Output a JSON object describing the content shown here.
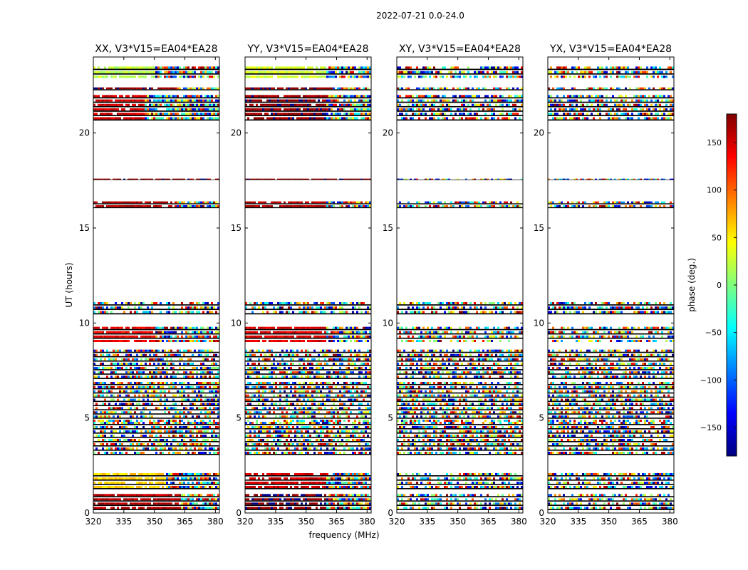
{
  "figure": {
    "suptitle": "2022-07-21 0.0-24.0",
    "xlabel": "frequency (MHz)",
    "ylabel": "UT (hours)"
  },
  "colorbar": {
    "label": "phase (deg.)",
    "range": [
      -180,
      180
    ],
    "ticks": [
      150,
      100,
      50,
      0,
      -50,
      -100,
      -150
    ],
    "tick_labels": [
      "150",
      "100",
      "50",
      "0",
      "−50",
      "−100",
      "−150"
    ],
    "colormap": "jet",
    "colors": [
      "#00007f",
      "#0000ff",
      "#007fff",
      "#00ffff",
      "#7fff7f",
      "#ffff00",
      "#ff7f00",
      "#ff0000",
      "#7f0000"
    ]
  },
  "chart_data": [
    {
      "type": "heatmap",
      "title": "XX, V3*V15=EA04*EA28",
      "xlim": [
        320,
        382
      ],
      "ylim": [
        0,
        24
      ],
      "xticks": [
        320,
        335,
        350,
        365,
        380
      ],
      "yticks": [
        0,
        5,
        10,
        15,
        20
      ],
      "xtick_labels": [
        "320",
        "335",
        "350",
        "365",
        "380"
      ],
      "ytick_labels": [
        "0",
        "5",
        "10",
        "15",
        "20"
      ],
      "bands": [
        {
          "ut": [
            0.1,
            1.0
          ],
          "phase": 160,
          "freq_coherent_max": 363
        },
        {
          "ut": [
            1.2,
            2.1
          ],
          "phase": 60,
          "freq_coherent_max": 355
        },
        {
          "ut": [
            3.0,
            4.8
          ],
          "phase": null
        },
        {
          "ut": [
            4.8,
            6.9
          ],
          "phase": null
        },
        {
          "ut": [
            7.0,
            8.6
          ],
          "phase": null
        },
        {
          "ut": [
            9.0,
            9.8
          ],
          "phase": 140,
          "freq_coherent_max": 350
        },
        {
          "ut": [
            10.4,
            11.1
          ],
          "phase": null
        },
        {
          "ut": [
            16.0,
            16.4
          ],
          "phase": 160,
          "freq_coherent_max": 360
        },
        {
          "ut": [
            17.5,
            17.6
          ],
          "phase": 170,
          "freq_coherent_max": 382
        },
        {
          "ut": [
            20.6,
            22.0
          ],
          "phase": 150,
          "freq_coherent_max": 345
        },
        {
          "ut": [
            22.2,
            22.4
          ],
          "phase": 170,
          "freq_coherent_max": 360
        },
        {
          "ut": [
            22.9,
            23.5
          ],
          "phase": 20,
          "freq_coherent_max": 350
        }
      ]
    },
    {
      "type": "heatmap",
      "title": "YY, V3*V15=EA04*EA28",
      "xlim": [
        320,
        382
      ],
      "ylim": [
        0,
        24
      ],
      "xticks": [
        320,
        335,
        350,
        365,
        380
      ],
      "yticks": [
        0,
        5,
        10,
        15,
        20
      ],
      "xtick_labels": [
        "320",
        "335",
        "350",
        "365",
        "380"
      ],
      "ytick_labels": [
        "0",
        "5",
        "10",
        "15",
        "20"
      ],
      "bands": [
        {
          "ut": [
            0.1,
            1.0
          ],
          "phase": 175,
          "freq_coherent_max": 359
        },
        {
          "ut": [
            1.2,
            2.1
          ],
          "phase": 150,
          "freq_coherent_max": 359
        },
        {
          "ut": [
            3.0,
            4.8
          ],
          "phase": null
        },
        {
          "ut": [
            4.8,
            6.9
          ],
          "phase": null
        },
        {
          "ut": [
            7.0,
            8.6
          ],
          "phase": null
        },
        {
          "ut": [
            9.0,
            9.8
          ],
          "phase": 145,
          "freq_coherent_max": 359
        },
        {
          "ut": [
            10.4,
            11.1
          ],
          "phase": null
        },
        {
          "ut": [
            16.0,
            16.4
          ],
          "phase": 160,
          "freq_coherent_max": 359
        },
        {
          "ut": [
            17.5,
            17.6
          ],
          "phase": 170,
          "freq_coherent_max": 382
        },
        {
          "ut": [
            20.6,
            22.0
          ],
          "phase": 170,
          "freq_coherent_max": 359
        },
        {
          "ut": [
            22.2,
            22.4
          ],
          "phase": 175,
          "freq_coherent_max": 359
        },
        {
          "ut": [
            22.9,
            23.5
          ],
          "phase": 30,
          "freq_coherent_max": 359
        }
      ]
    },
    {
      "type": "heatmap",
      "title": "XY, V3*V15=EA04*EA28",
      "xlim": [
        320,
        382
      ],
      "ylim": [
        0,
        24
      ],
      "xticks": [
        320,
        335,
        350,
        365,
        380
      ],
      "yticks": [
        0,
        5,
        10,
        15,
        20
      ],
      "xtick_labels": [
        "320",
        "335",
        "350",
        "365",
        "380"
      ],
      "ytick_labels": [
        "0",
        "5",
        "10",
        "15",
        "20"
      ],
      "bands": [
        {
          "ut": [
            0.1,
            1.0
          ],
          "phase": null
        },
        {
          "ut": [
            1.2,
            2.1
          ],
          "phase": null
        },
        {
          "ut": [
            3.0,
            4.8
          ],
          "phase": null
        },
        {
          "ut": [
            4.8,
            6.9
          ],
          "phase": null
        },
        {
          "ut": [
            7.0,
            8.6
          ],
          "phase": null
        },
        {
          "ut": [
            9.0,
            9.8
          ],
          "phase": null
        },
        {
          "ut": [
            10.4,
            11.1
          ],
          "phase": null
        },
        {
          "ut": [
            16.0,
            16.4
          ],
          "phase": null
        },
        {
          "ut": [
            17.5,
            17.6
          ],
          "phase": null
        },
        {
          "ut": [
            20.6,
            22.0
          ],
          "phase": null
        },
        {
          "ut": [
            22.2,
            22.4
          ],
          "phase": null
        },
        {
          "ut": [
            22.9,
            23.5
          ],
          "phase": null
        }
      ]
    },
    {
      "type": "heatmap",
      "title": "YX, V3*V15=EA04*EA28",
      "xlim": [
        320,
        382
      ],
      "ylim": [
        0,
        24
      ],
      "xticks": [
        320,
        335,
        350,
        365,
        380
      ],
      "yticks": [
        0,
        5,
        10,
        15,
        20
      ],
      "xtick_labels": [
        "320",
        "335",
        "350",
        "365",
        "380"
      ],
      "ytick_labels": [
        "0",
        "5",
        "10",
        "15",
        "20"
      ],
      "bands": [
        {
          "ut": [
            0.1,
            1.0
          ],
          "phase": null
        },
        {
          "ut": [
            1.2,
            2.1
          ],
          "phase": null
        },
        {
          "ut": [
            3.0,
            4.8
          ],
          "phase": null
        },
        {
          "ut": [
            4.8,
            6.9
          ],
          "phase": null
        },
        {
          "ut": [
            7.0,
            8.6
          ],
          "phase": null
        },
        {
          "ut": [
            9.0,
            9.8
          ],
          "phase": null
        },
        {
          "ut": [
            10.4,
            11.1
          ],
          "phase": null
        },
        {
          "ut": [
            16.0,
            16.4
          ],
          "phase": null
        },
        {
          "ut": [
            17.5,
            17.6
          ],
          "phase": null
        },
        {
          "ut": [
            20.6,
            22.0
          ],
          "phase": null
        },
        {
          "ut": [
            22.2,
            22.4
          ],
          "phase": null
        },
        {
          "ut": [
            22.9,
            23.5
          ],
          "phase": null
        }
      ]
    }
  ]
}
